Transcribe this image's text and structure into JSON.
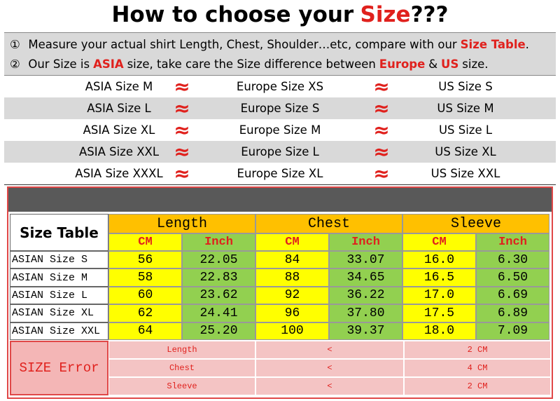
{
  "title": {
    "before": "How to choose your",
    "highlight": "Size",
    "after": "???"
  },
  "notes": [
    [
      {
        "text": "①",
        "red": false
      },
      {
        "text": "Measure your actual shirt Length, Chest, Shoulder…etc, compare with our",
        "red": false
      },
      {
        "text": "Size Table",
        "red": true
      },
      {
        "text": ".",
        "red": false
      }
    ],
    [
      {
        "text": "②",
        "red": false
      },
      {
        "text": "Our Size is",
        "red": false
      },
      {
        "text": "ASIA",
        "red": true
      },
      {
        "text": "size, take care the Size difference between",
        "red": false
      },
      {
        "text": "Europe",
        "red": true
      },
      {
        "text": "&",
        "red": false
      },
      {
        "text": "US",
        "red": true
      },
      {
        "text": "size.",
        "red": false
      }
    ]
  ],
  "approx": "≈",
  "conversion": [
    [
      "ASIA Size M",
      "Europe Size XS",
      "US Size S"
    ],
    [
      "ASIA Size L",
      "Europe Size S",
      "US Size M"
    ],
    [
      "ASIA Size XL",
      "Europe Size M",
      "US Size L"
    ],
    [
      "ASIA Size XXL",
      "Europe Size L",
      "US Size XL"
    ],
    [
      "ASIA Size XXXL",
      "Europe Size XL",
      "US Size XXL"
    ]
  ],
  "size_table": {
    "header": "Size Table",
    "groups": [
      "Length",
      "Chest",
      "Sleeve"
    ],
    "units": [
      "CM",
      "Inch"
    ],
    "rows": [
      {
        "label": "ASIAN Size S",
        "cells": [
          "56",
          "22.05",
          "84",
          "33.07",
          "16.0",
          "6.30"
        ]
      },
      {
        "label": "ASIAN Size M",
        "cells": [
          "58",
          "22.83",
          "88",
          "34.65",
          "16.5",
          "6.50"
        ]
      },
      {
        "label": "ASIAN Size L",
        "cells": [
          "60",
          "23.62",
          "92",
          "36.22",
          "17.0",
          "6.69"
        ]
      },
      {
        "label": "ASIAN Size XL",
        "cells": [
          "62",
          "24.41",
          "96",
          "37.80",
          "17.5",
          "6.89"
        ]
      },
      {
        "label": "ASIAN Size XXL",
        "cells": [
          "64",
          "25.20",
          "100",
          "39.37",
          "18.0",
          "7.09"
        ]
      }
    ]
  },
  "size_error": {
    "label": "SIZE Error",
    "rows": [
      [
        "Length",
        "<",
        "2 CM"
      ],
      [
        "Chest",
        "<",
        "4 CM"
      ],
      [
        "Sleeve",
        "<",
        "2 CM"
      ]
    ]
  }
}
